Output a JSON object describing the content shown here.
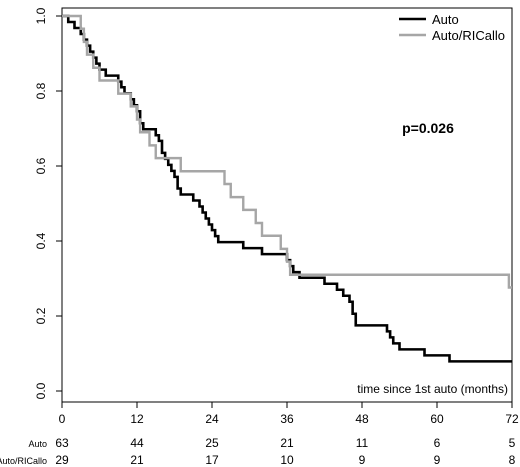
{
  "chart_data": {
    "type": "line",
    "title": "",
    "xlabel": "time since 1st auto (months)",
    "ylabel": "",
    "xlim": [
      0,
      72
    ],
    "ylim": [
      0,
      1
    ],
    "x_ticks": [
      0,
      12,
      24,
      36,
      48,
      60,
      72
    ],
    "y_ticks": [
      "0.0",
      "0.2",
      "0.4",
      "0.6",
      "0.8",
      "1.0"
    ],
    "annotation": "p=0.026",
    "legend_position": "top-right",
    "series": [
      {
        "name": "Auto",
        "color": "#000000",
        "points": [
          [
            0,
            1.0
          ],
          [
            1,
            0.984
          ],
          [
            2,
            0.968
          ],
          [
            3,
            0.952
          ],
          [
            3.5,
            0.937
          ],
          [
            4,
            0.921
          ],
          [
            4.5,
            0.905
          ],
          [
            5,
            0.889
          ],
          [
            5.5,
            0.873
          ],
          [
            6,
            0.857
          ],
          [
            7,
            0.841
          ],
          [
            9,
            0.825
          ],
          [
            9.5,
            0.81
          ],
          [
            10,
            0.794
          ],
          [
            11,
            0.778
          ],
          [
            11.5,
            0.762
          ],
          [
            12,
            0.746
          ],
          [
            12.5,
            0.714
          ],
          [
            13,
            0.698
          ],
          [
            15,
            0.682
          ],
          [
            15.5,
            0.667
          ],
          [
            16,
            0.635
          ],
          [
            16.5,
            0.619
          ],
          [
            17,
            0.603
          ],
          [
            17.5,
            0.587
          ],
          [
            18,
            0.571
          ],
          [
            18.5,
            0.54
          ],
          [
            19,
            0.524
          ],
          [
            21,
            0.508
          ],
          [
            22,
            0.492
          ],
          [
            22.5,
            0.476
          ],
          [
            23,
            0.46
          ],
          [
            23.5,
            0.444
          ],
          [
            24,
            0.429
          ],
          [
            24.5,
            0.413
          ],
          [
            25,
            0.397
          ],
          [
            29,
            0.381
          ],
          [
            32,
            0.365
          ],
          [
            36,
            0.349
          ],
          [
            36.5,
            0.333
          ],
          [
            37,
            0.317
          ],
          [
            38,
            0.302
          ],
          [
            42,
            0.286
          ],
          [
            44,
            0.27
          ],
          [
            45,
            0.254
          ],
          [
            46,
            0.238
          ],
          [
            46.5,
            0.206
          ],
          [
            47,
            0.175
          ],
          [
            52,
            0.159
          ],
          [
            52.5,
            0.143
          ],
          [
            53,
            0.127
          ],
          [
            54,
            0.111
          ],
          [
            58,
            0.095
          ],
          [
            62,
            0.079
          ],
          [
            72,
            0.079
          ]
        ]
      },
      {
        "name": "Auto/RICallo",
        "color": "#a6a6a6",
        "points": [
          [
            0,
            1.0
          ],
          [
            3,
            0.966
          ],
          [
            3.5,
            0.931
          ],
          [
            4,
            0.897
          ],
          [
            5,
            0.862
          ],
          [
            6,
            0.828
          ],
          [
            9,
            0.793
          ],
          [
            11,
            0.759
          ],
          [
            12,
            0.724
          ],
          [
            12.5,
            0.69
          ],
          [
            14,
            0.655
          ],
          [
            15,
            0.621
          ],
          [
            19,
            0.586
          ],
          [
            26,
            0.552
          ],
          [
            27,
            0.517
          ],
          [
            29,
            0.483
          ],
          [
            31,
            0.448
          ],
          [
            32,
            0.414
          ],
          [
            35,
            0.379
          ],
          [
            36,
            0.345
          ],
          [
            36.5,
            0.31
          ],
          [
            71.5,
            0.276
          ],
          [
            72,
            0.276
          ]
        ]
      }
    ],
    "risk_table": {
      "times": [
        0,
        12,
        24,
        36,
        48,
        60,
        72
      ],
      "rows": [
        {
          "label": "Auto",
          "counts": [
            63,
            44,
            25,
            21,
            11,
            6,
            5
          ]
        },
        {
          "label": "Auto/RICallo",
          "counts": [
            29,
            21,
            17,
            10,
            9,
            9,
            8
          ]
        }
      ]
    }
  }
}
